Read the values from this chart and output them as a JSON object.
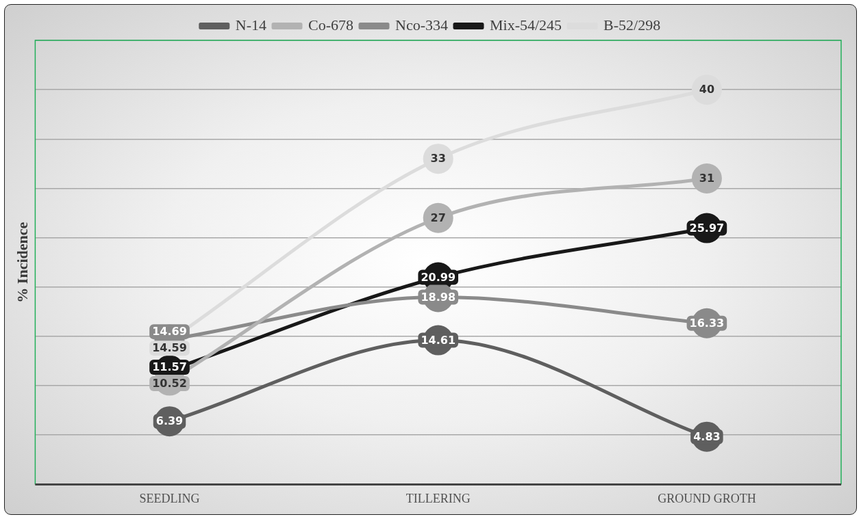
{
  "chart_data": {
    "type": "line",
    "ylabel": "% Incidence",
    "categories": [
      "SEEDLING",
      "TILLERING",
      "GROUND GROTH"
    ],
    "series": [
      {
        "name": "N-14",
        "color": "#5f5f5f",
        "values": [
          6.39,
          14.61,
          4.83
        ]
      },
      {
        "name": "Co-678",
        "color": "#b2b2b2",
        "values": [
          10.52,
          27,
          31
        ]
      },
      {
        "name": "Nco-334",
        "color": "#8a8a8a",
        "values": [
          14.69,
          18.98,
          16.33
        ]
      },
      {
        "name": "Mix-54/245",
        "color": "#181818",
        "values": [
          11.57,
          20.99,
          25.97
        ]
      },
      {
        "name": "B-52/298",
        "color": "#dcdcdc",
        "values": [
          14.59,
          33,
          40
        ]
      }
    ],
    "ylim": [
      0,
      45
    ],
    "yticks": [
      {
        "value": 0,
        "label": null
      },
      {
        "value": 5,
        "label": null
      },
      {
        "value": 10,
        "label": null
      },
      {
        "value": 15,
        "label": null
      },
      {
        "value": 20,
        "label": null
      },
      {
        "value": 25,
        "label": null
      },
      {
        "value": 30,
        "label": null
      },
      {
        "value": 35,
        "label": null
      },
      {
        "value": 40,
        "label": null
      },
      {
        "value": 45,
        "label": null
      }
    ],
    "tick_labels": "x",
    "grid": "y",
    "legend": "top",
    "marker": "circle",
    "line_style": "solid",
    "data_labels": true
  }
}
